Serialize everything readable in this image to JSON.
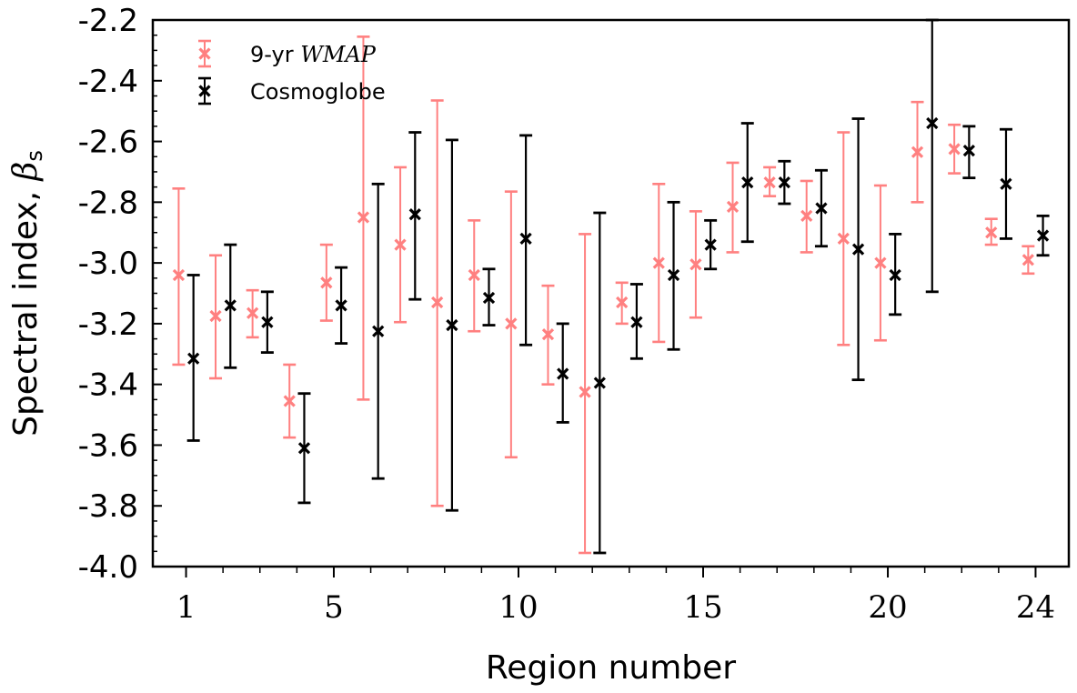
{
  "chart_data": {
    "type": "scatter",
    "xlabel": "Region number",
    "ylabel_main": "Spectral index, ",
    "ylabel_symbol": "β",
    "ylabel_subscript": "s",
    "xlim": [
      0.1,
      24.9
    ],
    "ylim": [
      -4.0,
      -2.2
    ],
    "xticks": [
      1,
      5,
      10,
      15,
      20,
      24
    ],
    "yticks": [
      -4.0,
      -3.8,
      -3.6,
      -3.4,
      -3.2,
      -3.0,
      -2.8,
      -2.6,
      -2.4,
      -2.2
    ],
    "ytick_labels": [
      "-4.0",
      "-3.8",
      "-3.6",
      "-3.4",
      "-3.2",
      "-3.0",
      "-2.8",
      "-2.6",
      "-2.4",
      "-2.2"
    ],
    "grid": false,
    "legend_position": "top-left",
    "series": [
      {
        "name_prefix": "9-yr ",
        "name_italic": "WMAP",
        "color": "#ff8080",
        "x_offset": -0.2,
        "marker": "x",
        "points": [
          {
            "x": 1,
            "y": -3.04,
            "lo": -3.335,
            "hi": -2.755
          },
          {
            "x": 2,
            "y": -3.175,
            "lo": -3.38,
            "hi": -2.975
          },
          {
            "x": 3,
            "y": -3.165,
            "lo": -3.245,
            "hi": -3.09
          },
          {
            "x": 4,
            "y": -3.455,
            "lo": -3.575,
            "hi": -3.335
          },
          {
            "x": 5,
            "y": -3.065,
            "lo": -3.19,
            "hi": -2.94
          },
          {
            "x": 6,
            "y": -2.85,
            "lo": -3.45,
            "hi": -2.255
          },
          {
            "x": 7,
            "y": -2.94,
            "lo": -3.195,
            "hi": -2.685
          },
          {
            "x": 8,
            "y": -3.13,
            "lo": -3.8,
            "hi": -2.465
          },
          {
            "x": 9,
            "y": -3.04,
            "lo": -3.225,
            "hi": -2.86
          },
          {
            "x": 10,
            "y": -3.2,
            "lo": -3.64,
            "hi": -2.765
          },
          {
            "x": 11,
            "y": -3.235,
            "lo": -3.4,
            "hi": -3.075
          },
          {
            "x": 12,
            "y": -3.425,
            "lo": -3.955,
            "hi": -2.905
          },
          {
            "x": 13,
            "y": -3.13,
            "lo": -3.2,
            "hi": -3.065
          },
          {
            "x": 14,
            "y": -3.0,
            "lo": -3.26,
            "hi": -2.74
          },
          {
            "x": 15,
            "y": -3.005,
            "lo": -3.18,
            "hi": -2.83
          },
          {
            "x": 16,
            "y": -2.815,
            "lo": -2.965,
            "hi": -2.67
          },
          {
            "x": 17,
            "y": -2.735,
            "lo": -2.78,
            "hi": -2.685
          },
          {
            "x": 18,
            "y": -2.845,
            "lo": -2.965,
            "hi": -2.73
          },
          {
            "x": 19,
            "y": -2.92,
            "lo": -3.27,
            "hi": -2.57
          },
          {
            "x": 20,
            "y": -3.0,
            "lo": -3.255,
            "hi": -2.745
          },
          {
            "x": 21,
            "y": -2.635,
            "lo": -2.8,
            "hi": -2.47
          },
          {
            "x": 22,
            "y": -2.625,
            "lo": -2.705,
            "hi": -2.545
          },
          {
            "x": 23,
            "y": -2.9,
            "lo": -2.94,
            "hi": -2.855
          },
          {
            "x": 24,
            "y": -2.99,
            "lo": -3.035,
            "hi": -2.945
          }
        ]
      },
      {
        "name": "Cosmoglobe",
        "color": "#000000",
        "x_offset": 0.2,
        "marker": "x",
        "points": [
          {
            "x": 1,
            "y": -3.315,
            "lo": -3.585,
            "hi": -3.04
          },
          {
            "x": 2,
            "y": -3.14,
            "lo": -3.345,
            "hi": -2.94
          },
          {
            "x": 3,
            "y": -3.195,
            "lo": -3.295,
            "hi": -3.095
          },
          {
            "x": 4,
            "y": -3.61,
            "lo": -3.79,
            "hi": -3.43
          },
          {
            "x": 5,
            "y": -3.14,
            "lo": -3.265,
            "hi": -3.015
          },
          {
            "x": 6,
            "y": -3.225,
            "lo": -3.71,
            "hi": -2.74
          },
          {
            "x": 7,
            "y": -2.84,
            "lo": -3.12,
            "hi": -2.57
          },
          {
            "x": 8,
            "y": -3.205,
            "lo": -3.815,
            "hi": -2.595
          },
          {
            "x": 9,
            "y": -3.115,
            "lo": -3.205,
            "hi": -3.02
          },
          {
            "x": 10,
            "y": -2.92,
            "lo": -3.27,
            "hi": -2.58
          },
          {
            "x": 11,
            "y": -3.365,
            "lo": -3.525,
            "hi": -3.2
          },
          {
            "x": 12,
            "y": -3.395,
            "lo": -3.955,
            "hi": -2.835
          },
          {
            "x": 13,
            "y": -3.195,
            "lo": -3.315,
            "hi": -3.07
          },
          {
            "x": 14,
            "y": -3.04,
            "lo": -3.285,
            "hi": -2.8
          },
          {
            "x": 15,
            "y": -2.94,
            "lo": -3.02,
            "hi": -2.86
          },
          {
            "x": 16,
            "y": -2.735,
            "lo": -2.93,
            "hi": -2.54
          },
          {
            "x": 17,
            "y": -2.735,
            "lo": -2.805,
            "hi": -2.665
          },
          {
            "x": 18,
            "y": -2.82,
            "lo": -2.945,
            "hi": -2.695
          },
          {
            "x": 19,
            "y": -2.955,
            "lo": -3.385,
            "hi": -2.525
          },
          {
            "x": 20,
            "y": -3.04,
            "lo": -3.17,
            "hi": -2.905
          },
          {
            "x": 21,
            "y": -2.54,
            "lo": -3.095,
            "hi": -2.2
          },
          {
            "x": 22,
            "y": -2.63,
            "lo": -2.72,
            "hi": -2.55
          },
          {
            "x": 23,
            "y": -2.74,
            "lo": -2.92,
            "hi": -2.56
          },
          {
            "x": 24,
            "y": -2.91,
            "lo": -2.975,
            "hi": -2.845
          }
        ]
      }
    ]
  }
}
